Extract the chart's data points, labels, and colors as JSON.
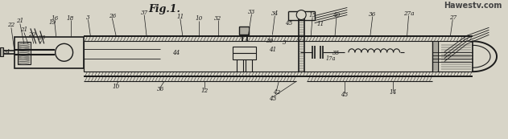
{
  "bg_color": "#d8d5c8",
  "line_color": "#1a1a1a",
  "title_text": "Fig.1.",
  "watermark": "Hawestv.com",
  "watermark_color": "#444444",
  "fig_width": 6.31,
  "fig_height": 1.73,
  "dpi": 100
}
